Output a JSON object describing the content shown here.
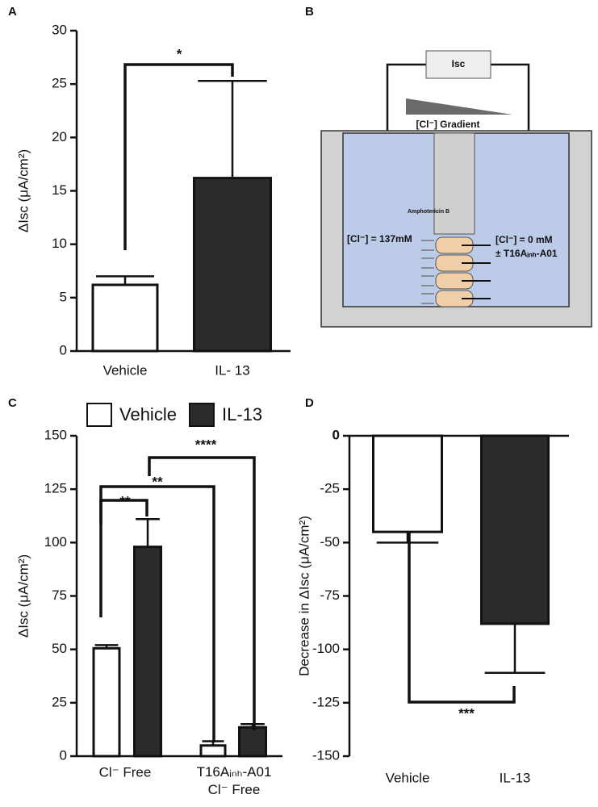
{
  "chart_data": [
    {
      "type": "bar",
      "label": "A",
      "ylabel": "ΔIsc (μA/cm²)",
      "categories": [
        "Vehicle",
        "IL- 13"
      ],
      "values": [
        6.2,
        16.2
      ],
      "errors": [
        0.8,
        9.1
      ],
      "colors": [
        "#ffffff",
        "#2b2b2b"
      ],
      "ylim": [
        0,
        30
      ],
      "yticks": [
        0,
        5,
        10,
        15,
        20,
        25,
        30
      ],
      "annotations": [
        "*"
      ]
    },
    {
      "type": "bar",
      "label": "C",
      "ylabel": "ΔIsc (μA/cm²)",
      "categories": [
        "Cl⁻ Free",
        "T16Aᵢₙₕ-A01\nCl⁻ Free"
      ],
      "series": [
        {
          "name": "Vehicle",
          "color": "#ffffff",
          "values": [
            50.5,
            5
          ],
          "errors": [
            1.5,
            2
          ]
        },
        {
          "name": "IL-13",
          "color": "#2b2b2b",
          "values": [
            98,
            13.5
          ],
          "errors": [
            13,
            1.5
          ]
        }
      ],
      "legend": "top",
      "ylim": [
        0,
        150
      ],
      "yticks": [
        0,
        25,
        50,
        75,
        100,
        125,
        150
      ],
      "annotations": [
        "**",
        "**",
        "****"
      ]
    },
    {
      "type": "bar",
      "label": "D",
      "ylabel": "Decrease in ΔIsc (μA/cm²)",
      "categories": [
        "Vehicle",
        "IL-13"
      ],
      "values": [
        -45,
        -88
      ],
      "errors": [
        5,
        23
      ],
      "colors": [
        "#ffffff",
        "#2b2b2b"
      ],
      "ylim": [
        -150,
        0
      ],
      "yticks": [
        0,
        -25,
        -50,
        -75,
        -100,
        -125,
        -150
      ],
      "annotations": [
        "***"
      ]
    }
  ],
  "diagram": {
    "label": "B",
    "meter": "Isc",
    "gradient": "[Cl⁻] Gradient",
    "drug": "Amphotericin B",
    "left": "[Cl⁻] = 137mM",
    "right": "[Cl⁻] = 0 mM",
    "inhibitor": "± T16Aᵢₙₕ-A01"
  }
}
